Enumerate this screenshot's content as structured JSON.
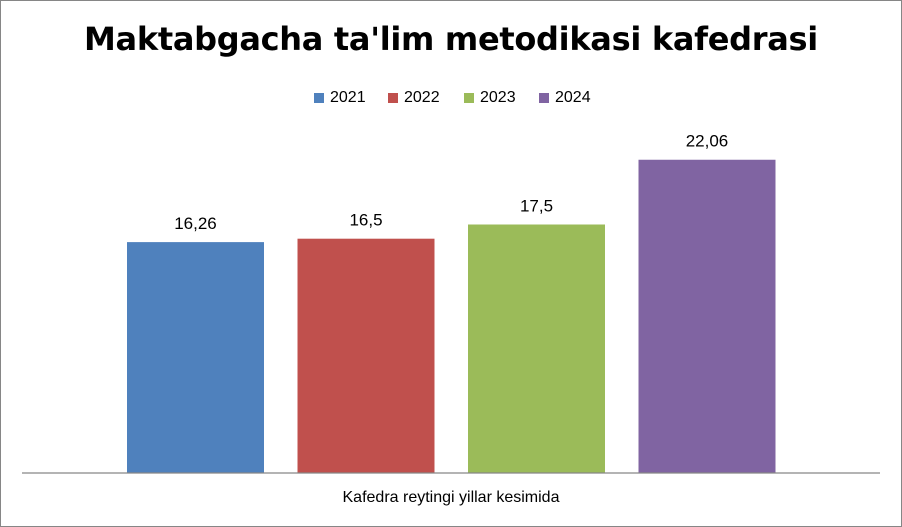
{
  "chart_data": {
    "type": "bar",
    "title": "Maktabgacha ta'lim metodikasi kafedrasi",
    "xlabel": "Kafedra reytingi yillar kesimida",
    "ylabel": "",
    "categories": [
      "Kafedra reytingi yillar kesimida"
    ],
    "series": [
      {
        "name": "2021",
        "values": [
          16.26
        ],
        "label": "16,26",
        "color": "#4F81BD"
      },
      {
        "name": "2022",
        "values": [
          16.5
        ],
        "label": "16,5",
        "color": "#C0504D"
      },
      {
        "name": "2023",
        "values": [
          17.5
        ],
        "label": "17,5",
        "color": "#9BBB59"
      },
      {
        "name": "2024",
        "values": [
          22.06
        ],
        "label": "22,06",
        "color": "#8064A2"
      }
    ],
    "ylim": [
      0,
      25
    ],
    "grid": false,
    "legend_position": "top"
  }
}
